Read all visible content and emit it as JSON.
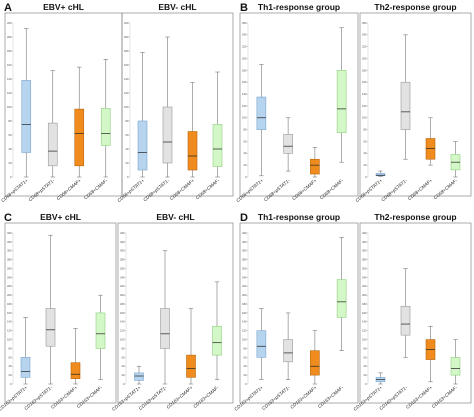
{
  "colors": {
    "blue": "#b6d4ee",
    "blue_stroke": "#7aa6cf",
    "gray": "#e2e2e2",
    "gray_stroke": "#9a9a9a",
    "orange": "#f08c1e",
    "orange_stroke": "#b8660e",
    "green": "#d4f7c8",
    "green_stroke": "#8fcf7e",
    "median": "#222222",
    "frame": "#888888"
  },
  "chart_data": [
    {
      "type": "box",
      "panel": "A",
      "subtitles": [
        "EBV+ cHL",
        "EBV- cHL"
      ],
      "categories": [
        "CD68+pSTAT1+",
        "CD68+pSTAT1-",
        "CD68+CMAF+",
        "CD68+CMAF-"
      ],
      "color_keys": [
        "blue",
        "gray",
        "orange",
        "green"
      ],
      "ylim": [
        0,
        220
      ],
      "yticks": [
        0,
        20,
        40,
        60,
        80,
        100,
        120,
        140,
        160,
        180,
        200,
        220
      ],
      "groups": [
        [
          {
            "min": 0,
            "q1": 35,
            "median": 75,
            "q3": 138,
            "max": 212
          },
          {
            "min": 0,
            "q1": 16,
            "median": 37,
            "q3": 77,
            "max": 152
          },
          {
            "min": 0,
            "q1": 16,
            "median": 62,
            "q3": 97,
            "max": 157
          },
          {
            "min": 0,
            "q1": 45,
            "median": 62,
            "q3": 98,
            "max": 168
          }
        ],
        [
          {
            "min": 0,
            "q1": 10,
            "median": 35,
            "q3": 80,
            "max": 178
          },
          {
            "min": 0,
            "q1": 20,
            "median": 50,
            "q3": 100,
            "max": 200
          },
          {
            "min": 0,
            "q1": 10,
            "median": 30,
            "q3": 65,
            "max": 135
          },
          {
            "min": 0,
            "q1": 15,
            "median": 40,
            "q3": 75,
            "max": 150
          }
        ]
      ]
    },
    {
      "type": "box",
      "panel": "B",
      "subtitles": [
        "Th1-response group",
        "Th2-response group"
      ],
      "categories": [
        "CD68+pSTAT1+",
        "CD68+pSTAT1-",
        "CD68+CMAF+",
        "CD68+CMAF-"
      ],
      "color_keys": [
        "blue",
        "gray",
        "orange",
        "green"
      ],
      "ylim": [
        0,
        260
      ],
      "yticks": [
        0,
        20,
        40,
        60,
        80,
        100,
        120,
        140,
        160,
        180,
        200,
        220,
        240,
        260
      ],
      "groups": [
        [
          {
            "min": 2,
            "q1": 80,
            "median": 100,
            "q3": 135,
            "max": 190
          },
          {
            "min": 10,
            "q1": 40,
            "median": 52,
            "q3": 72,
            "max": 100
          },
          {
            "min": 0,
            "q1": 5,
            "median": 20,
            "q3": 30,
            "max": 50
          },
          {
            "min": 25,
            "q1": 75,
            "median": 115,
            "q3": 180,
            "max": 252
          }
        ],
        [
          {
            "min": 1,
            "q1": 2,
            "median": 3,
            "q3": 6,
            "max": 10
          },
          {
            "min": 30,
            "q1": 80,
            "median": 110,
            "q3": 160,
            "max": 240
          },
          {
            "min": 20,
            "q1": 30,
            "median": 48,
            "q3": 65,
            "max": 100
          },
          {
            "min": 0,
            "q1": 12,
            "median": 25,
            "q3": 38,
            "max": 60
          }
        ]
      ]
    },
    {
      "type": "box",
      "panel": "C",
      "subtitles": [
        "EBV+ cHL",
        "EBV- cHL"
      ],
      "categories": [
        "CD163+pSTAT1+",
        "CD163+pSTAT1-",
        "CD163+CMAF+",
        "CD163+CMAF-"
      ],
      "color_keys": [
        "blue",
        "gray",
        "orange",
        "green"
      ],
      "ylim": [
        0,
        340
      ],
      "yticks": [
        0,
        20,
        40,
        60,
        80,
        100,
        120,
        140,
        160,
        180,
        200,
        220,
        240,
        260,
        280,
        300,
        320,
        340
      ],
      "groups": [
        [
          {
            "min": 0,
            "q1": 15,
            "median": 28,
            "q3": 60,
            "max": 150
          },
          {
            "min": 0,
            "q1": 85,
            "median": 122,
            "q3": 170,
            "max": 335
          },
          {
            "min": 0,
            "q1": 12,
            "median": 22,
            "q3": 48,
            "max": 125
          },
          {
            "min": 10,
            "q1": 80,
            "median": 113,
            "q3": 160,
            "max": 200
          }
        ],
        [
          {
            "min": 0,
            "q1": 8,
            "median": 18,
            "q3": 25,
            "max": 40
          },
          {
            "min": 0,
            "q1": 80,
            "median": 113,
            "q3": 170,
            "max": 300
          },
          {
            "min": 0,
            "q1": 15,
            "median": 35,
            "q3": 65,
            "max": 170
          },
          {
            "min": 10,
            "q1": 65,
            "median": 93,
            "q3": 130,
            "max": 230
          }
        ]
      ]
    },
    {
      "type": "box",
      "panel": "D",
      "subtitles": [
        "Th1-response group",
        "Th2-response group"
      ],
      "categories": [
        "CD163+pSTAT1+",
        "CD163+pSTAT1-",
        "CD163+CMAF+",
        "CD163+CMAF-"
      ],
      "color_keys": [
        "blue",
        "gray",
        "orange",
        "green"
      ],
      "ylim": [
        0,
        340
      ],
      "yticks": [
        0,
        20,
        40,
        60,
        80,
        100,
        120,
        140,
        160,
        180,
        200,
        220,
        240,
        260,
        280,
        300,
        320,
        340
      ],
      "groups": [
        [
          {
            "min": 10,
            "q1": 60,
            "median": 85,
            "q3": 120,
            "max": 170
          },
          {
            "min": 10,
            "q1": 50,
            "median": 70,
            "q3": 100,
            "max": 160
          },
          {
            "min": 0,
            "q1": 20,
            "median": 40,
            "q3": 75,
            "max": 120
          },
          {
            "min": 75,
            "q1": 150,
            "median": 185,
            "q3": 235,
            "max": 330
          }
        ],
        [
          {
            "min": 0,
            "q1": 5,
            "median": 10,
            "q3": 15,
            "max": 25
          },
          {
            "min": 60,
            "q1": 110,
            "median": 135,
            "q3": 175,
            "max": 260
          },
          {
            "min": 5,
            "q1": 55,
            "median": 78,
            "q3": 100,
            "max": 130
          },
          {
            "min": 0,
            "q1": 20,
            "median": 35,
            "q3": 60,
            "max": 100
          }
        ]
      ]
    }
  ]
}
